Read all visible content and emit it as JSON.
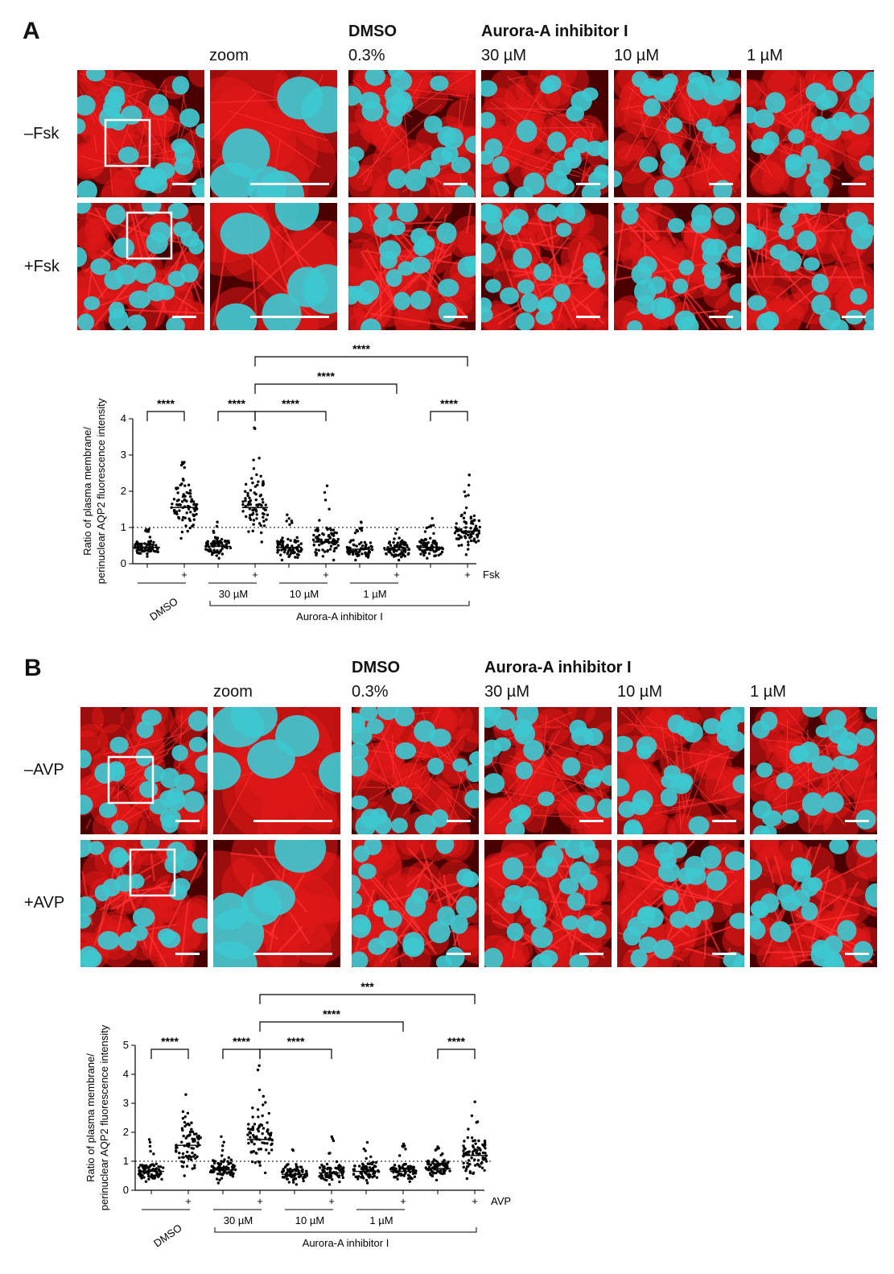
{
  "panels": [
    {
      "letter": "A",
      "headers": {
        "zoom": "zoom",
        "dmso_title": "DMSO",
        "dmso_conc": "0.3%",
        "inhibitor_title": "Aurora-A inhibitor I",
        "conc": [
          "30 µM",
          "10 µM",
          "1 µM"
        ]
      },
      "row_labels": [
        "–Fsk",
        "+Fsk"
      ],
      "chart_data": {
        "type": "scatter",
        "ylabel": "Ratio of plasma membrane/ perinuclear AQP2 fluorescence intensity",
        "ylabel_lines": [
          "Ratio of plasma membrane/",
          "perinuclear AQP2 fluorescence intensity"
        ],
        "ylim": [
          0,
          4
        ],
        "yticks": [
          "0",
          "1",
          "2",
          "3",
          "4"
        ],
        "reference_line": 1,
        "treatment": "Fsk",
        "plus": "+",
        "groups": [
          "DMSO",
          "30 µM",
          "10 µM",
          "1 µM"
        ],
        "inhibitor_label": "Aurora-A inhibitor I",
        "series": [
          {
            "group": "DMSO",
            "stimulated": false,
            "median": 0.45,
            "min": 0.2,
            "max": 0.95
          },
          {
            "group": "DMSO",
            "stimulated": true,
            "median": 1.55,
            "min": 0.7,
            "max": 2.8
          },
          {
            "group": "DMSO",
            "stimulated": false,
            "median": 0.48,
            "min": 0.15,
            "max": 1.15
          },
          {
            "group": "DMSO",
            "stimulated": true,
            "median": 1.55,
            "min": 0.6,
            "max": 3.75
          },
          {
            "group": "30 µM",
            "stimulated": false,
            "median": 0.45,
            "min": 0.1,
            "max": 1.35
          },
          {
            "group": "30 µM",
            "stimulated": true,
            "median": 0.6,
            "min": 0.1,
            "max": 2.15
          },
          {
            "group": "10 µM",
            "stimulated": false,
            "median": 0.4,
            "min": 0.1,
            "max": 1.15
          },
          {
            "group": "10 µM",
            "stimulated": true,
            "median": 0.38,
            "min": 0.1,
            "max": 0.95
          },
          {
            "group": "1 µM",
            "stimulated": false,
            "median": 0.45,
            "min": 0.15,
            "max": 1.25
          },
          {
            "group": "1 µM",
            "stimulated": true,
            "median": 0.9,
            "min": 0.25,
            "max": 2.45
          }
        ],
        "comparisons": [
          {
            "from": 0,
            "to": 1,
            "label": "****"
          },
          {
            "from": 2,
            "to": 3,
            "label": "****"
          },
          {
            "from": 3,
            "to": 5,
            "label": "****"
          },
          {
            "from": 8,
            "to": 9,
            "label": "****"
          },
          {
            "from": 3,
            "to": 7,
            "label": "****"
          },
          {
            "from": 3,
            "to": 9,
            "label": "****"
          }
        ]
      }
    },
    {
      "letter": "B",
      "headers": {
        "zoom": "zoom",
        "dmso_title": "DMSO",
        "dmso_conc": "0.3%",
        "inhibitor_title": "Aurora-A inhibitor I",
        "conc": [
          "30 µM",
          "10 µM",
          "1 µM"
        ]
      },
      "row_labels": [
        "–AVP",
        "+AVP"
      ],
      "chart_data": {
        "type": "scatter",
        "ylabel": "Ratio of plasma membrane/ perinuclear AQP2 fluorescence intensity",
        "ylabel_lines": [
          "Ratio of plasma membrane/",
          "perinuclear AQP2 fluorescence intensity"
        ],
        "ylim": [
          0,
          5
        ],
        "yticks": [
          "0",
          "1",
          "2",
          "3",
          "4",
          "5"
        ],
        "reference_line": 1,
        "treatment": "AVP",
        "plus": "+",
        "groups": [
          "DMSO",
          "30 µM",
          "10 µM",
          "1 µM"
        ],
        "inhibitor_label": "Aurora-A inhibitor I",
        "series": [
          {
            "group": "DMSO",
            "stimulated": false,
            "median": 0.65,
            "min": 0.3,
            "max": 1.75
          },
          {
            "group": "DMSO",
            "stimulated": true,
            "median": 1.55,
            "min": 0.5,
            "max": 3.3
          },
          {
            "group": "DMSO",
            "stimulated": false,
            "median": 0.7,
            "min": 0.25,
            "max": 1.85
          },
          {
            "group": "DMSO",
            "stimulated": true,
            "median": 1.75,
            "min": 0.6,
            "max": 4.3
          },
          {
            "group": "30 µM",
            "stimulated": false,
            "median": 0.55,
            "min": 0.2,
            "max": 1.4
          },
          {
            "group": "30 µM",
            "stimulated": true,
            "median": 0.6,
            "min": 0.2,
            "max": 1.85
          },
          {
            "group": "10 µM",
            "stimulated": false,
            "median": 0.65,
            "min": 0.25,
            "max": 1.65
          },
          {
            "group": "10 µM",
            "stimulated": true,
            "median": 0.65,
            "min": 0.3,
            "max": 1.6
          },
          {
            "group": "1 µM",
            "stimulated": false,
            "median": 0.75,
            "min": 0.35,
            "max": 1.5
          },
          {
            "group": "1 µM",
            "stimulated": true,
            "median": 1.2,
            "min": 0.4,
            "max": 3.05
          }
        ],
        "comparisons": [
          {
            "from": 0,
            "to": 1,
            "label": "****"
          },
          {
            "from": 2,
            "to": 3,
            "label": "****"
          },
          {
            "from": 3,
            "to": 5,
            "label": "****"
          },
          {
            "from": 8,
            "to": 9,
            "label": "****"
          },
          {
            "from": 3,
            "to": 7,
            "label": "****"
          },
          {
            "from": 3,
            "to": 9,
            "label": "***"
          }
        ]
      }
    }
  ],
  "colors": {
    "membrane": "#e01818",
    "nucleus": "#3ec8d0",
    "background": "#4a0000"
  }
}
